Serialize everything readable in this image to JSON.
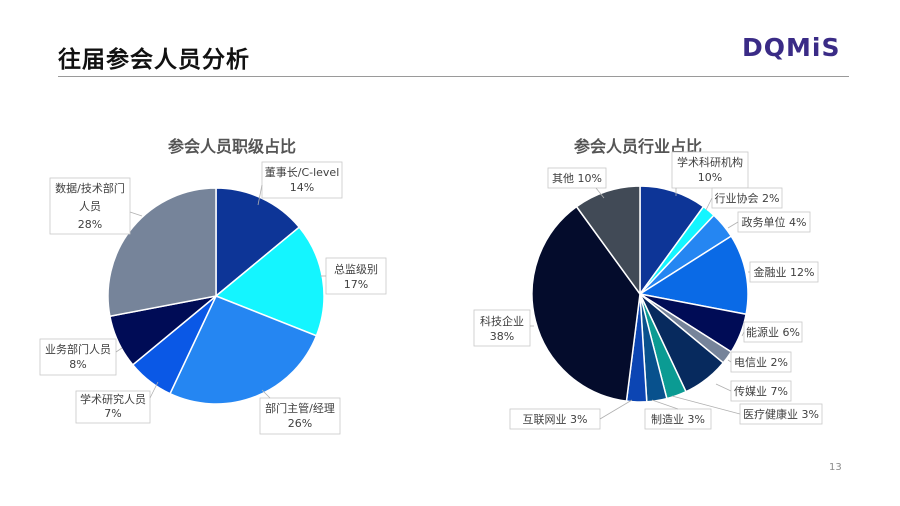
{
  "page": {
    "title": "往届参会人员分析",
    "logo": "DQMiS",
    "page_number": "13"
  },
  "colors": {
    "accent": "#3a2b86",
    "rule": "#9a9a9a"
  },
  "chart_data": [
    {
      "type": "pie",
      "title": "参会人员职级占比",
      "slices": [
        {
          "name": "董事长/C-level",
          "value": 14,
          "label": "14%",
          "color": "#0d3597"
        },
        {
          "name": "总监级别",
          "value": 17,
          "label": "17%",
          "color": "#14f5ff"
        },
        {
          "name": "部门主管/经理",
          "value": 26,
          "label": "26%",
          "color": "#2586f2"
        },
        {
          "name": "学术研究人员",
          "value": 7,
          "label": "7%",
          "color": "#0a58e6"
        },
        {
          "name": "业务部门人员",
          "value": 8,
          "label": "8%",
          "color": "#000c56"
        },
        {
          "name": "数据/技术部门人员",
          "value": 28,
          "label": "28%",
          "color": "#76849a"
        }
      ]
    },
    {
      "type": "pie",
      "title": "参会人员行业占比",
      "slices": [
        {
          "name": "学术科研机构",
          "value": 10,
          "label": "10%",
          "color": "#0d3597"
        },
        {
          "name": "行业协会",
          "value": 2,
          "label": "2%",
          "color": "#14f5ff"
        },
        {
          "name": "政务单位",
          "value": 4,
          "label": "4%",
          "color": "#2586f2"
        },
        {
          "name": "金融业",
          "value": 12,
          "label": "12%",
          "color": "#0a6ae6"
        },
        {
          "name": "能源业",
          "value": 6,
          "label": "6%",
          "color": "#000c56"
        },
        {
          "name": "电信业",
          "value": 2,
          "label": "2%",
          "color": "#76849a"
        },
        {
          "name": "传媒业",
          "value": 7,
          "label": "7%",
          "color": "#072a5e"
        },
        {
          "name": "医疗健康业",
          "value": 3,
          "label": "3%",
          "color": "#0b9b93"
        },
        {
          "name": "制造业",
          "value": 3,
          "label": "3%",
          "color": "#08518d"
        },
        {
          "name": "互联网业",
          "value": 3,
          "label": "3%",
          "color": "#0c45b3"
        },
        {
          "name": "科技企业",
          "value": 38,
          "label": "38%",
          "color": "#040c2c"
        },
        {
          "name": "其他",
          "value": 10,
          "label": "10%",
          "color": "#414a56"
        }
      ]
    }
  ]
}
